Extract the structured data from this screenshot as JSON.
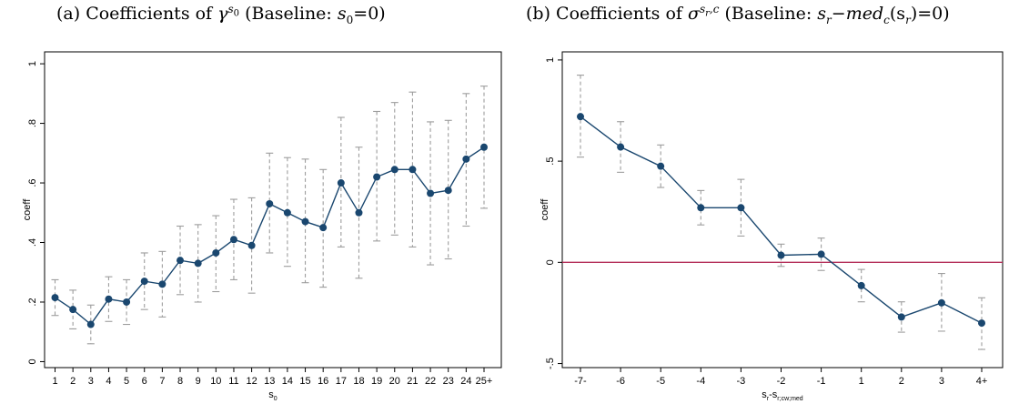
{
  "panels": {
    "a": {
      "prefix": "(a) Coefficients of",
      "symbol": "γ",
      "sup": "s",
      "sup_sub": "0",
      "baseline_lead": "(Baseline:",
      "baseline_var": "s",
      "baseline_sub": "0",
      "baseline_rest": "=0)"
    },
    "b": {
      "prefix": "(b) Coefficients of",
      "symbol": "σ",
      "sup": "s",
      "sup_sub": "r",
      "sup_rest": ",c",
      "baseline_lead": "(Baseline:",
      "baseline_var": "s",
      "baseline_sub": "r",
      "baseline_minus": "−",
      "baseline_fn": "med",
      "baseline_fn_sub": "c",
      "baseline_arg": "(s",
      "baseline_arg_sub": "r",
      "baseline_rest": ")=0)"
    }
  },
  "colors": {
    "line": "#1a476f",
    "ci": "#9d9d9d",
    "zero": "#b5305a",
    "axis": "#000000"
  },
  "chart_data": [
    {
      "type": "line",
      "ylabel": "coeff",
      "xlabel_base": "s",
      "xlabel_sub": "0",
      "categories": [
        "1",
        "2",
        "3",
        "4",
        "5",
        "6",
        "7",
        "8",
        "9",
        "10",
        "11",
        "12",
        "13",
        "14",
        "15",
        "16",
        "17",
        "18",
        "19",
        "20",
        "21",
        "22",
        "23",
        "24",
        "25+"
      ],
      "values": [
        0.215,
        0.175,
        0.125,
        0.21,
        0.2,
        0.27,
        0.26,
        0.34,
        0.33,
        0.365,
        0.41,
        0.39,
        0.53,
        0.5,
        0.47,
        0.45,
        0.6,
        0.5,
        0.62,
        0.645,
        0.645,
        0.565,
        0.575,
        0.68,
        0.72
      ],
      "ci_low": [
        0.155,
        0.11,
        0.06,
        0.135,
        0.125,
        0.175,
        0.15,
        0.225,
        0.2,
        0.235,
        0.275,
        0.23,
        0.365,
        0.32,
        0.265,
        0.25,
        0.385,
        0.28,
        0.405,
        0.425,
        0.385,
        0.325,
        0.345,
        0.455,
        0.515
      ],
      "ci_high": [
        0.275,
        0.24,
        0.19,
        0.285,
        0.275,
        0.365,
        0.37,
        0.455,
        0.46,
        0.49,
        0.545,
        0.55,
        0.7,
        0.685,
        0.68,
        0.645,
        0.82,
        0.72,
        0.84,
        0.87,
        0.905,
        0.805,
        0.81,
        0.9,
        0.925
      ],
      "ylim": [
        -0.02,
        1.04
      ],
      "yticks": [
        0,
        0.2,
        0.4,
        0.6,
        0.8,
        1
      ],
      "ytick_labels": [
        "0",
        ".2",
        ".4",
        ".6",
        ".8",
        "1"
      ],
      "grid": false,
      "reference_line": null
    },
    {
      "type": "line",
      "ylabel": "coeff",
      "xlabel_base": "s",
      "xlabel_sub": "r",
      "xlabel_mid": "-s",
      "xlabel_sub2": "r;cw;med",
      "categories": [
        "-7-",
        "-6",
        "-5",
        "-4",
        "-3",
        "-2",
        "-1",
        "1",
        "2",
        "3",
        "4+"
      ],
      "values": [
        0.72,
        0.57,
        0.475,
        0.27,
        0.27,
        0.035,
        0.04,
        -0.115,
        -0.27,
        -0.2,
        -0.3
      ],
      "ci_low": [
        0.52,
        0.445,
        0.37,
        0.185,
        0.13,
        -0.02,
        -0.04,
        -0.195,
        -0.345,
        -0.34,
        -0.43
      ],
      "ci_high": [
        0.925,
        0.695,
        0.58,
        0.355,
        0.41,
        0.09,
        0.12,
        -0.035,
        -0.195,
        -0.055,
        -0.175
      ],
      "ylim": [
        -0.52,
        1.04
      ],
      "yticks": [
        -0.5,
        0,
        0.5,
        1
      ],
      "ytick_labels": [
        "-.5",
        "0",
        ".5",
        "1"
      ],
      "grid": false,
      "reference_line": 0
    }
  ]
}
